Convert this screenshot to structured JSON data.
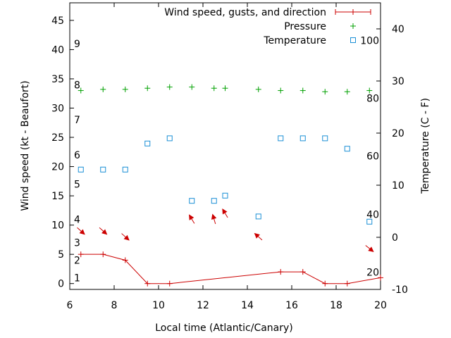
{
  "chart_data": {
    "type": "line",
    "xlabel": "Local time (Atlantic/Canary)",
    "ylabel_left": "Wind speed (kt - Beaufort)",
    "ylabel_right": "Temperature (C - F)",
    "xlim": [
      6,
      20
    ],
    "ylim_left": [
      -1,
      48
    ],
    "ylim_right": [
      -10,
      45
    ],
    "x_ticks": [
      6,
      8,
      10,
      12,
      14,
      16,
      18,
      20
    ],
    "y_left_ticks": [
      0,
      5,
      10,
      15,
      20,
      25,
      30,
      35,
      40,
      45
    ],
    "y_right_ticks": [
      -10,
      0,
      10,
      20,
      30,
      40
    ],
    "beaufort_labels": [
      {
        "label": "1",
        "at": 1
      },
      {
        "label": "2",
        "at": 4
      },
      {
        "label": "3",
        "at": 7
      },
      {
        "label": "4",
        "at": 11
      },
      {
        "label": "5",
        "at": 17
      },
      {
        "label": "6",
        "at": 22
      },
      {
        "label": "7",
        "at": 28
      },
      {
        "label": "8",
        "at": 34
      },
      {
        "label": "9",
        "at": 41
      }
    ],
    "fahrenheit_labels": [
      {
        "label": "20",
        "at": -6.7
      },
      {
        "label": "40",
        "at": 4.4
      },
      {
        "label": "60",
        "at": 15.6
      },
      {
        "label": "80",
        "at": 26.7
      },
      {
        "label": "100",
        "at": 37.8
      }
    ],
    "legend": {
      "placement": "top-right",
      "entries": [
        {
          "label": "Wind speed, gusts, and direction",
          "color": "#cc0000",
          "marker": "line-plus"
        },
        {
          "label": "Pressure",
          "color": "#00a000",
          "marker": "plus"
        },
        {
          "label": "Temperature",
          "color": "#1a8fd6",
          "marker": "square"
        }
      ]
    },
    "wind": {
      "color": "#cc0000",
      "x": [
        6.5,
        7.5,
        8.5,
        9.5,
        10.5,
        15.5,
        16.5,
        17.5,
        18.5,
        20
      ],
      "values": [
        5,
        5,
        4,
        0,
        0,
        2,
        2,
        0,
        0,
        1
      ]
    },
    "wind_direction_arrows": {
      "color": "#cc0000",
      "points": [
        {
          "x": 6.5,
          "y": 9,
          "dx": 1,
          "dy": -0.9
        },
        {
          "x": 7.5,
          "y": 9,
          "dx": 1,
          "dy": -0.9
        },
        {
          "x": 8.5,
          "y": 8,
          "dx": 1,
          "dy": -0.9
        },
        {
          "x": 11.5,
          "y": 11,
          "dx": -0.6,
          "dy": 1
        },
        {
          "x": 12.5,
          "y": 11,
          "dx": -0.3,
          "dy": 1
        },
        {
          "x": 13,
          "y": 12,
          "dx": -0.6,
          "dy": 1
        },
        {
          "x": 14.5,
          "y": 8,
          "dx": -1,
          "dy": 0.9
        },
        {
          "x": 19.5,
          "y": 6,
          "dx": 1,
          "dy": -0.8
        }
      ]
    },
    "pressure": {
      "color": "#00a000",
      "axis": "left",
      "x": [
        6.5,
        7.5,
        8.5,
        9.5,
        10.5,
        11.5,
        12.5,
        13,
        14.5,
        15.5,
        16.5,
        17.5,
        18.5,
        19.5
      ],
      "values": [
        33,
        33.2,
        33.2,
        33.4,
        33.6,
        33.6,
        33.4,
        33.4,
        33.2,
        33,
        33,
        32.8,
        32.8,
        33
      ]
    },
    "temperature": {
      "color": "#1a8fd6",
      "axis": "right",
      "x": [
        6.5,
        7.5,
        8.5,
        9.5,
        10.5,
        11.5,
        12.5,
        13,
        14.5,
        15.5,
        16.5,
        17.5,
        18.5,
        19.5
      ],
      "values": [
        13,
        13,
        13,
        18,
        19,
        7,
        7,
        8,
        4,
        19,
        19,
        19,
        17,
        3
      ]
    }
  }
}
